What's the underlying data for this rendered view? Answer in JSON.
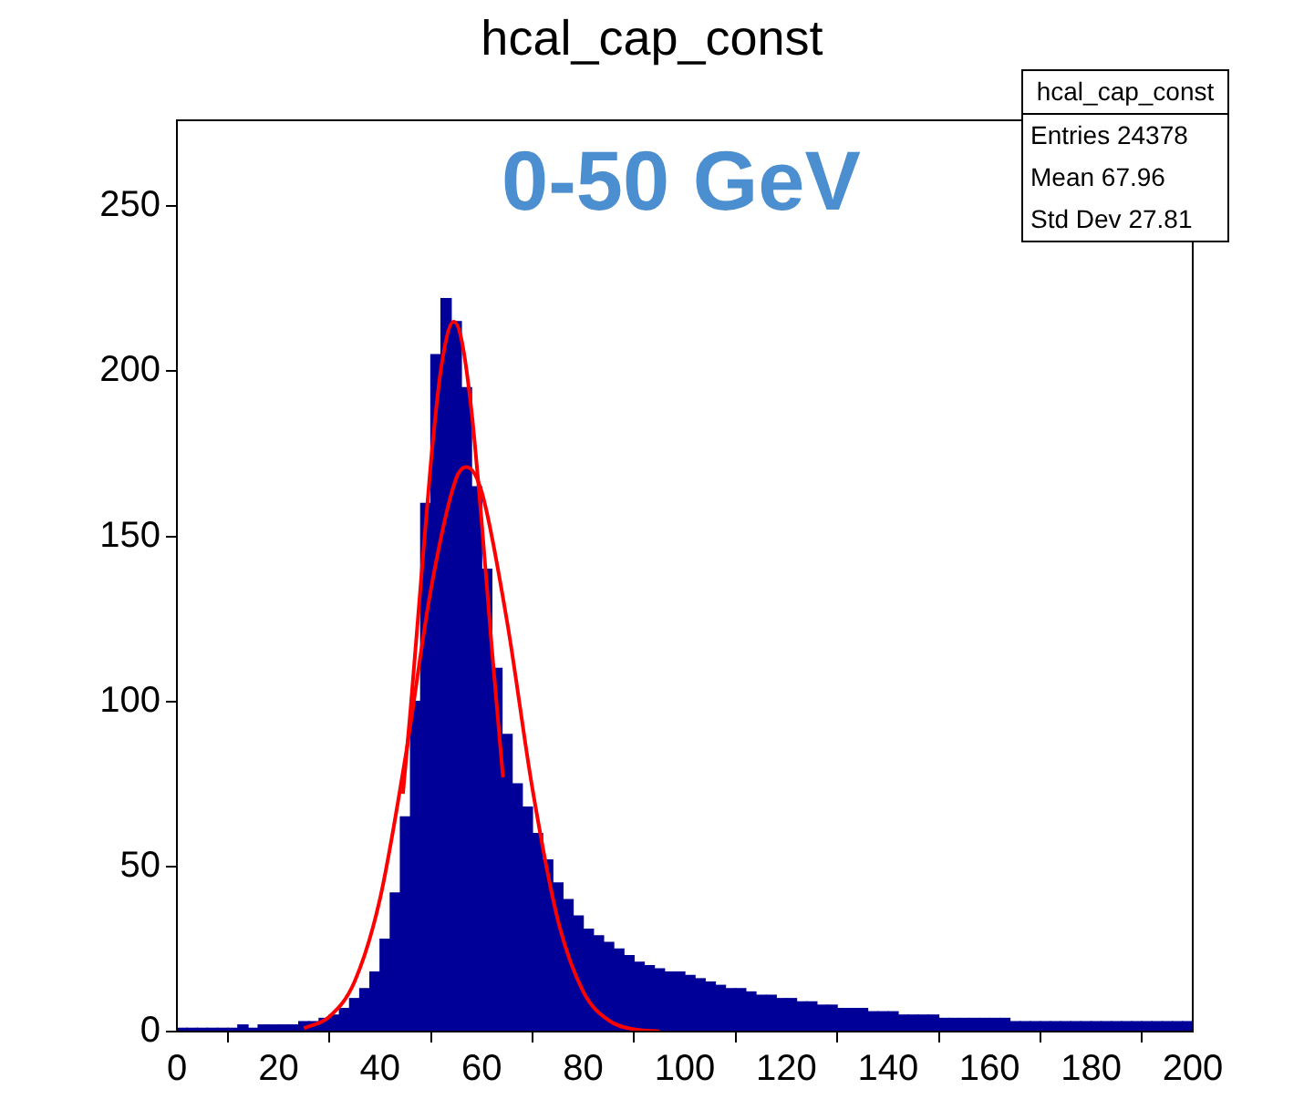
{
  "chart_data": {
    "type": "histogram",
    "title": "hcal_cap_const",
    "xlim": [
      0,
      200
    ],
    "xticks": [
      0,
      20,
      40,
      60,
      80,
      100,
      120,
      140,
      160,
      180,
      200
    ],
    "ylim": [
      0,
      276
    ],
    "yticks": [
      0,
      50,
      100,
      150,
      200,
      250
    ],
    "grid": false,
    "legend": false,
    "marker": "none",
    "annotations": [
      "0-50 GeV",
      "hcal_cap_const",
      "Entries 24378",
      "Mean 67.96",
      "Std Dev 27.81"
    ],
    "series": [
      {
        "color": "#000099",
        "bins": [
          0,
          2,
          4,
          6,
          8,
          10,
          12,
          14,
          16,
          18,
          20,
          22,
          24,
          26,
          28,
          30,
          32,
          34,
          36,
          38,
          40,
          42,
          44,
          46,
          48,
          50,
          52,
          54,
          56,
          58,
          60,
          62,
          64,
          66,
          68,
          70,
          72,
          74,
          76,
          78,
          80,
          82,
          84,
          86,
          88,
          90,
          92,
          94,
          96,
          98,
          100,
          102,
          104,
          106,
          108,
          110,
          112,
          114,
          116,
          118,
          120,
          122,
          124,
          126,
          128,
          130,
          132,
          134,
          136,
          138,
          140,
          142,
          144,
          146,
          148,
          150,
          152,
          154,
          156,
          158,
          160,
          162,
          164,
          166,
          168,
          170,
          172,
          174,
          176,
          178,
          180,
          182,
          184,
          186,
          188,
          190,
          192,
          194,
          196,
          198,
          200
        ],
        "values": [
          1,
          1,
          1,
          1,
          1,
          1,
          2,
          1,
          2,
          2,
          2,
          2,
          3,
          3,
          4,
          5,
          7,
          10,
          13,
          18,
          28,
          42,
          65,
          100,
          160,
          205,
          222,
          215,
          195,
          165,
          140,
          110,
          90,
          75,
          68,
          60,
          52,
          45,
          40,
          35,
          31,
          29,
          27,
          25,
          23,
          21,
          20,
          19,
          18,
          18,
          17,
          16,
          15,
          14,
          13,
          13,
          12,
          11,
          11,
          10,
          10,
          9,
          9,
          8,
          8,
          7,
          7,
          7,
          6,
          6,
          6,
          5,
          5,
          5,
          5,
          4,
          4,
          4,
          4,
          4,
          4,
          4,
          3,
          3,
          3,
          3,
          3,
          3,
          3,
          3,
          3,
          3,
          3,
          3,
          3,
          3,
          3,
          3,
          3,
          3
        ]
      },
      {
        "type": "line",
        "color": "#ff0000",
        "x": [
          44.5,
          46,
          48,
          50,
          52,
          54.5,
          56,
          58,
          60,
          62,
          64.2
        ],
        "values": [
          72,
          97.6,
          135.4,
          172.3,
          200.8,
          215,
          209.8,
          188,
          154.4,
          116.2,
          77
        ]
      },
      {
        "type": "line",
        "color": "#ff0000",
        "x": [
          25,
          30,
          35,
          40,
          45,
          50,
          55,
          57,
          60,
          65,
          70,
          75,
          80,
          85,
          90,
          95
        ],
        "values": [
          1,
          4.5,
          15.2,
          40.3,
          83.2,
          133.8,
          167.6,
          171,
          163.5,
          124.2,
          73.5,
          33.8,
          12.1,
          3.4,
          0.7,
          0.1
        ]
      }
    ]
  }
}
